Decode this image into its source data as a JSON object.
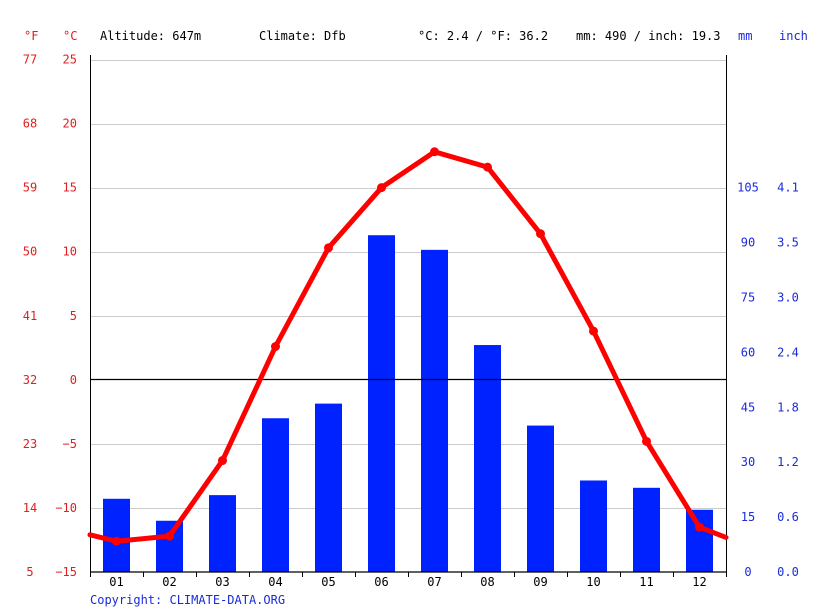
{
  "header": {
    "unit_f": "°F",
    "unit_c": "°C",
    "altitude": "Altitude: 647m",
    "climate": "Climate: Dfb",
    "temp_avg": "°C: 2.4 / °F: 36.2",
    "precip_total": "mm: 490 / inch: 19.3",
    "unit_mm": "mm",
    "unit_inch": "inch"
  },
  "copyright": "Copyright: CLIMATE-DATA.ORG",
  "colors": {
    "temperature": "#ff0000",
    "precipitation": "#0022ff",
    "grid": "#cccccc",
    "zero_line": "#000000",
    "left_labels": "#e02020",
    "right_labels": "#1a2bdc"
  },
  "chart_data": {
    "type": "bar",
    "categories": [
      "01",
      "02",
      "03",
      "04",
      "05",
      "06",
      "07",
      "08",
      "09",
      "10",
      "11",
      "12"
    ],
    "series": [
      {
        "kind": "bar",
        "axis": "precipitation",
        "values": [
          20,
          14,
          21,
          42,
          46,
          92,
          88,
          62,
          40,
          25,
          23,
          17
        ]
      },
      {
        "kind": "line",
        "axis": "temperature",
        "values": [
          -12.6,
          -12.2,
          -6.3,
          2.6,
          10.3,
          15.0,
          17.8,
          16.6,
          11.4,
          3.8,
          -4.8,
          -11.5
        ]
      }
    ],
    "temperature_axis": {
      "ylim": [
        -15,
        25
      ],
      "ticks_c": [
        "25",
        "20",
        "15",
        "10",
        "5",
        "0",
        "−5",
        "−10",
        "−15"
      ],
      "ticks_f": [
        "77",
        "68",
        "59",
        "50",
        "41",
        "32",
        "23",
        "14",
        "5"
      ]
    },
    "precipitation_axis": {
      "ylim": [
        0,
        140
      ],
      "ticks_mm": [
        "105",
        "90",
        "75",
        "60",
        "45",
        "30",
        "15",
        "0"
      ],
      "ticks_inch": [
        "4.1",
        "3.5",
        "3.0",
        "2.4",
        "1.8",
        "1.2",
        "0.6",
        "0.0"
      ],
      "tick_values_mm": [
        105,
        90,
        75,
        60,
        45,
        30,
        15,
        0
      ]
    },
    "line_start_value": -12.1,
    "line_end_value": -12.3,
    "grid": true
  }
}
